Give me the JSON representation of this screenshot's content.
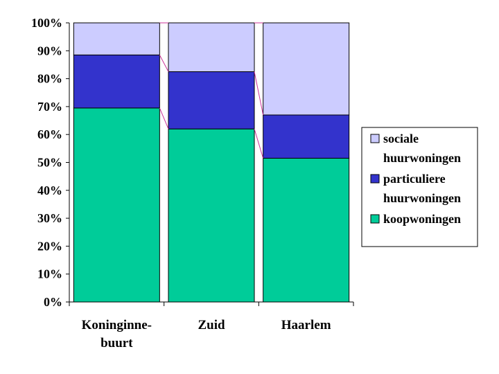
{
  "chart_data": {
    "type": "bar",
    "stacked": true,
    "percent_stacked": true,
    "categories": [
      [
        "Koninginne-",
        "buurt"
      ],
      [
        "Zuid"
      ],
      [
        "Haarlem"
      ]
    ],
    "series": [
      {
        "name": "koopwoningen",
        "values": [
          69.5,
          62,
          51.5
        ],
        "color": "#00CC99"
      },
      {
        "name": "particuliere huurwoningen",
        "values": [
          19,
          20.5,
          15.5
        ],
        "color": "#3333CC"
      },
      {
        "name": "sociale huurwoningen",
        "values": [
          11.5,
          17.5,
          33
        ],
        "color": "#CCCCFF"
      }
    ],
    "ylim": [
      0,
      100
    ],
    "yticks": [
      "0%",
      "10%",
      "20%",
      "30%",
      "40%",
      "50%",
      "60%",
      "70%",
      "80%",
      "90%",
      "100%"
    ],
    "legend": {
      "position": "right",
      "entries": [
        {
          "lines": [
            "sociale",
            "huurwoningen"
          ],
          "color": "#CCCCFF"
        },
        {
          "lines": [
            "particuliere",
            "huurwoningen"
          ],
          "color": "#3333CC"
        },
        {
          "lines": [
            "koopwoningen"
          ],
          "color": "#00CC99"
        }
      ]
    },
    "series_lines_color": "#CC3399",
    "grid": false
  }
}
